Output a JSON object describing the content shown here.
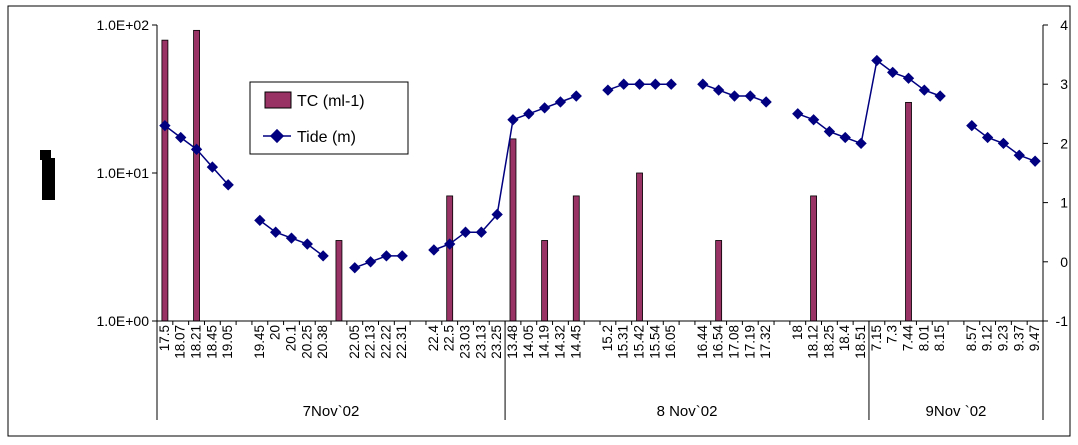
{
  "chart_data": {
    "type": "bar+line",
    "title": "",
    "categories": [
      "17.5",
      "18.07",
      "18.21",
      "18.45",
      "19.05",
      "",
      "19.45",
      "20",
      "20.1",
      "20.25",
      "20.38",
      "",
      "22.05",
      "22.13",
      "22.22",
      "22.31",
      "",
      "22.4",
      "22.5",
      "23.03",
      "23.13",
      "23.25",
      "13.48",
      "14.05",
      "14.19",
      "14.32",
      "14.45",
      "",
      "15.2",
      "15.31",
      "15.42",
      "15.54",
      "16.05",
      "",
      "16.44",
      "16.54",
      "17.08",
      "17.19",
      "17.32",
      "",
      "18",
      "18.12",
      "18.25",
      "18.4",
      "18.51",
      "7.15",
      "7.3",
      "7.44",
      "8.01",
      "8.15",
      "",
      "8.57",
      "9.12",
      "9.23",
      "9.37",
      "9.47"
    ],
    "groups": [
      {
        "label": "7Nov`02",
        "start": 0,
        "end": 22
      },
      {
        "label": "8 Nov`02",
        "start": 22,
        "end": 45
      },
      {
        "label": "9Nov `02",
        "start": 45,
        "end": 56
      }
    ],
    "series": [
      {
        "name": "TC (ml-1)",
        "type": "bar",
        "axis": "left",
        "color": "#993366",
        "values": [
          79,
          null,
          92,
          null,
          null,
          null,
          null,
          null,
          null,
          null,
          null,
          3.5,
          null,
          null,
          null,
          null,
          null,
          null,
          7,
          null,
          null,
          null,
          17,
          null,
          3.5,
          null,
          7,
          null,
          null,
          null,
          10,
          null,
          null,
          null,
          null,
          3.5,
          null,
          null,
          null,
          null,
          null,
          7,
          null,
          null,
          null,
          null,
          null,
          30,
          null,
          null,
          null,
          null,
          null,
          null,
          null,
          null
        ]
      },
      {
        "name": "Tide (m)",
        "type": "line",
        "axis": "right",
        "color": "#000080",
        "values": [
          2.3,
          2.1,
          1.9,
          1.6,
          1.3,
          null,
          0.7,
          0.5,
          0.4,
          0.3,
          0.1,
          null,
          -0.1,
          0.0,
          0.1,
          0.1,
          null,
          0.2,
          0.3,
          0.5,
          0.5,
          0.8,
          2.4,
          2.5,
          2.6,
          2.7,
          2.8,
          null,
          2.9,
          3.0,
          3.0,
          3.0,
          3.0,
          null,
          3.0,
          2.9,
          2.8,
          2.8,
          2.7,
          null,
          2.5,
          2.4,
          2.2,
          2.1,
          2.0,
          3.4,
          3.2,
          3.1,
          2.9,
          2.8,
          null,
          2.3,
          2.1,
          2.0,
          1.8,
          1.7
        ]
      }
    ],
    "y_left": {
      "scale": "log",
      "ylim": [
        1,
        100
      ],
      "tick_labels": [
        "1.0E+00",
        "1.0E+01",
        "1.0E+02"
      ],
      "ticks": [
        1,
        10,
        100
      ]
    },
    "y_right": {
      "ylim": [
        -1,
        4
      ],
      "ticks": [
        -1,
        0,
        1,
        2,
        3,
        4
      ]
    },
    "legend": {
      "placement": "top-center-left",
      "entries": [
        "TC (ml-1)",
        "Tide (m)"
      ]
    },
    "grid": false
  }
}
